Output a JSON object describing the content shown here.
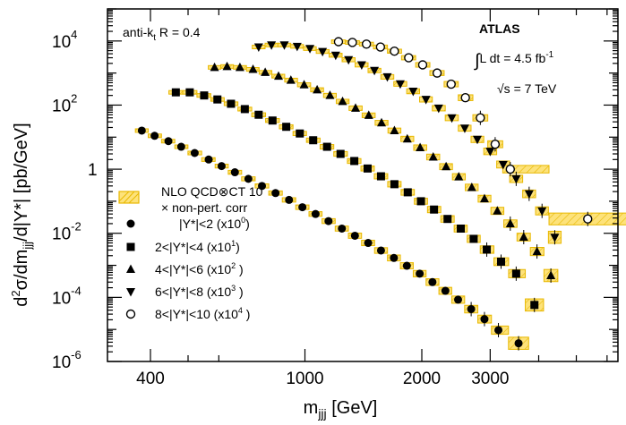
{
  "chart_data": {
    "type": "scatter",
    "title": "",
    "xlabel": "m_jjj [GeV]",
    "ylabel": "d²σ/dm_jjj/d|Y*| [pb/GeV]",
    "x_scale": "log",
    "y_scale": "log",
    "xlim": [
      310,
      6400
    ],
    "ylim": [
      1e-06,
      100000
    ],
    "x_tick_labels": [
      "400",
      "1000",
      "2000",
      "3000"
    ],
    "x_tick_values": [
      400,
      1000,
      2000,
      3000
    ],
    "y_tick_labels": [
      {
        "base": "10",
        "exp": "4",
        "value": 10000
      },
      {
        "base": "10",
        "exp": "2",
        "value": 100
      },
      {
        "base": "1",
        "exp": "",
        "value": 1
      },
      {
        "base": "10",
        "exp": "-2",
        "value": 0.01
      },
      {
        "base": "10",
        "exp": "-4",
        "value": 0.0001
      },
      {
        "base": "10",
        "exp": "-6",
        "value": 1e-06
      }
    ],
    "grid": false,
    "legend_placement": "bottom-left",
    "annotations": {
      "experiment": "ATLAS",
      "algorithm_prefix": "anti-k",
      "algorithm_sub": "t",
      "algorithm_suffix": " R = 0.4",
      "lumi_integral": "∫",
      "lumi_text": "L dt = 4.5 fb",
      "lumi_exp": "-1",
      "energy_sqrt": "√s",
      "energy_text": " = 7 TeV"
    },
    "legend": {
      "nlo_line1": "NLO QCD⊗CT 10",
      "nlo_line2": "× non-pert. corr"
    },
    "colors": {
      "band_fill": "#fde27a",
      "band_stroke": "#e8b800",
      "marker": "#000000"
    },
    "series": [
      {
        "name": "|Y*|<2 (x10",
        "name_exp": "0",
        "name_tail": ")",
        "marker": "circle",
        "x": [
          380,
          410,
          445,
          480,
          520,
          565,
          610,
          660,
          715,
          775,
          840,
          910,
          985,
          1065,
          1150,
          1245,
          1345,
          1455,
          1570,
          1695,
          1830,
          1975,
          2130,
          2300,
          2480,
          2680,
          2900,
          3150,
          3550
        ],
        "y": [
          16,
          11,
          7.5,
          5,
          3.2,
          2,
          1.25,
          0.8,
          0.5,
          0.3,
          0.18,
          0.11,
          0.065,
          0.04,
          0.024,
          0.014,
          0.0084,
          0.005,
          0.0029,
          0.0017,
          0.00097,
          0.00055,
          0.0003,
          0.00016,
          8.5e-05,
          4.3e-05,
          2.1e-05,
          9.5e-06,
          3.7e-06
        ]
      },
      {
        "name": "2<|Y*|<4",
        "name_mid": "  (x10",
        "name_exp": "1",
        "name_tail": ")",
        "marker": "square",
        "x": [
          465,
          505,
          550,
          595,
          645,
          700,
          760,
          825,
          895,
          970,
          1050,
          1140,
          1235,
          1340,
          1450,
          1570,
          1700,
          1840,
          1990,
          2150,
          2330,
          2520,
          2720,
          2940,
          3200,
          3500,
          3900
        ],
        "y": [
          250,
          250,
          200,
          150,
          110,
          75,
          50,
          33,
          21,
          13,
          8,
          5,
          3,
          1.8,
          1.05,
          0.6,
          0.34,
          0.19,
          0.1,
          0.055,
          0.028,
          0.014,
          0.0067,
          0.0031,
          0.0013,
          0.00055,
          5.8e-05
        ]
      },
      {
        "name": "4<|Y*|<6",
        "name_mid": "  (x10",
        "name_exp": "2",
        "name_tail": " )",
        "marker": "triangle-up",
        "x": [
          585,
          630,
          680,
          735,
          790,
          855,
          920,
          995,
          1075,
          1160,
          1250,
          1350,
          1460,
          1575,
          1700,
          1835,
          1980,
          2140,
          2310,
          2490,
          2690,
          2900,
          3130,
          3380,
          3660,
          3960,
          4300
        ],
        "y": [
          1500,
          1600,
          1500,
          1300,
          1050,
          800,
          600,
          430,
          300,
          200,
          130,
          80,
          48,
          28,
          16,
          8.8,
          4.7,
          2.4,
          1.2,
          0.58,
          0.27,
          0.12,
          0.05,
          0.02,
          0.0076,
          0.0027,
          0.00048
        ]
      },
      {
        "name": "6<|Y*|<8",
        "name_mid": "  (x10",
        "name_exp": "3",
        "name_tail": " )",
        "marker": "triangle-down",
        "x": [
          760,
          820,
          885,
          955,
          1030,
          1110,
          1200,
          1295,
          1400,
          1510,
          1630,
          1760,
          1900,
          2050,
          2210,
          2390,
          2580,
          2780,
          3000,
          3240,
          3500,
          3780,
          4080,
          4400
        ],
        "y": [
          6500,
          7500,
          7500,
          6800,
          5800,
          4700,
          3600,
          2600,
          1800,
          1200,
          760,
          460,
          270,
          150,
          80,
          40,
          19,
          8.5,
          3.6,
          1.4,
          0.5,
          0.17,
          0.05,
          0.0075
        ]
      },
      {
        "name": "8<|Y*|<10",
        "name_mid": "  (x10",
        "name_exp": "4",
        "name_tail": " )",
        "marker": "circle-open",
        "x": [
          1220,
          1325,
          1440,
          1565,
          1700,
          1850,
          2010,
          2190,
          2380,
          2590,
          2830,
          3090,
          3380,
          5350
        ],
        "y": [
          9500,
          9000,
          8000,
          6500,
          4800,
          3000,
          1800,
          1000,
          450,
          170,
          40,
          6,
          1.0,
          0.028
        ]
      }
    ]
  }
}
